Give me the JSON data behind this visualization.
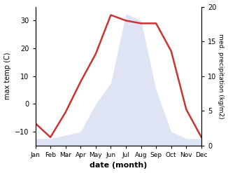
{
  "months": [
    "Jan",
    "Feb",
    "Mar",
    "Apr",
    "May",
    "Jun",
    "Jul",
    "Aug",
    "Sep",
    "Oct",
    "Nov",
    "Dec"
  ],
  "temperature": [
    -7,
    -12,
    -3,
    8,
    18,
    32,
    30,
    29,
    29,
    19,
    -2,
    -12
  ],
  "precipitation": [
    1,
    1,
    1.5,
    2,
    6,
    9,
    19,
    18,
    8,
    2,
    1,
    1
  ],
  "temp_color": "#cc3333",
  "precip_fill_color": "#b8c4e8",
  "ylabel_left": "max temp (C)",
  "ylabel_right": "med. precipitation (kg/m2)",
  "xlabel": "date (month)",
  "ylim_left": [
    -15,
    35
  ],
  "ylim_right": [
    0,
    20
  ],
  "bg_color": "#ffffff",
  "line_width": 1.8,
  "precip_alpha": 0.45
}
